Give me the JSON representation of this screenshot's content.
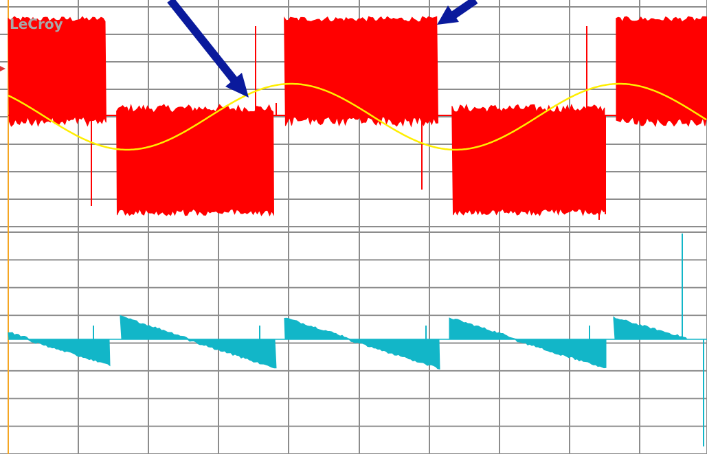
{
  "brand": "LeCroy",
  "colors": {
    "background": "#ffffff",
    "grid": "#8c8c8c",
    "left_edge": "#f5a623",
    "switched_voltage": "#ff0000",
    "sine_reference": "#ffee00",
    "current": "#12b6c8",
    "arrows": "#0a1a9c",
    "brand_text": "#a8a8a8"
  },
  "chart_data": [
    {
      "type": "line",
      "panel": "upper",
      "grid": true,
      "grid_divisions": {
        "x": 10,
        "y": 8
      },
      "series": [
        {
          "style": "switched-pwm-band",
          "segments": [
            {
              "x0": 0.0,
              "x1": 1.4,
              "level": "high"
            },
            {
              "x0": 1.55,
              "x1": 3.8,
              "level": "low"
            },
            {
              "x0": 3.95,
              "x1": 6.15,
              "level": "high"
            },
            {
              "x0": 6.35,
              "x1": 8.55,
              "level": "low"
            },
            {
              "x0": 8.7,
              "x1": 10.0,
              "level": "high"
            }
          ]
        },
        {
          "style": "sine",
          "period_div": 4.7,
          "peak_div": [
            4.05,
            8.75
          ],
          "trough_div": [
            1.7,
            6.4
          ],
          "amplitude_div": 1.0,
          "offset_div": 1.5
        }
      ]
    },
    {
      "type": "line",
      "panel": "lower",
      "grid": true,
      "grid_divisions": {
        "x": 10,
        "y": 8
      },
      "series": [
        {
          "style": "sawtooth-current",
          "jump_up_div": [
            1.6,
            3.95,
            6.3,
            8.7
          ],
          "zero_level_div": 3.55
        }
      ]
    }
  ],
  "annotations": [
    {
      "type": "arrow",
      "points_to": "upper-rising-sine-zero-crossing"
    },
    {
      "type": "arrow",
      "points_to": "upper-switching-edge"
    }
  ]
}
